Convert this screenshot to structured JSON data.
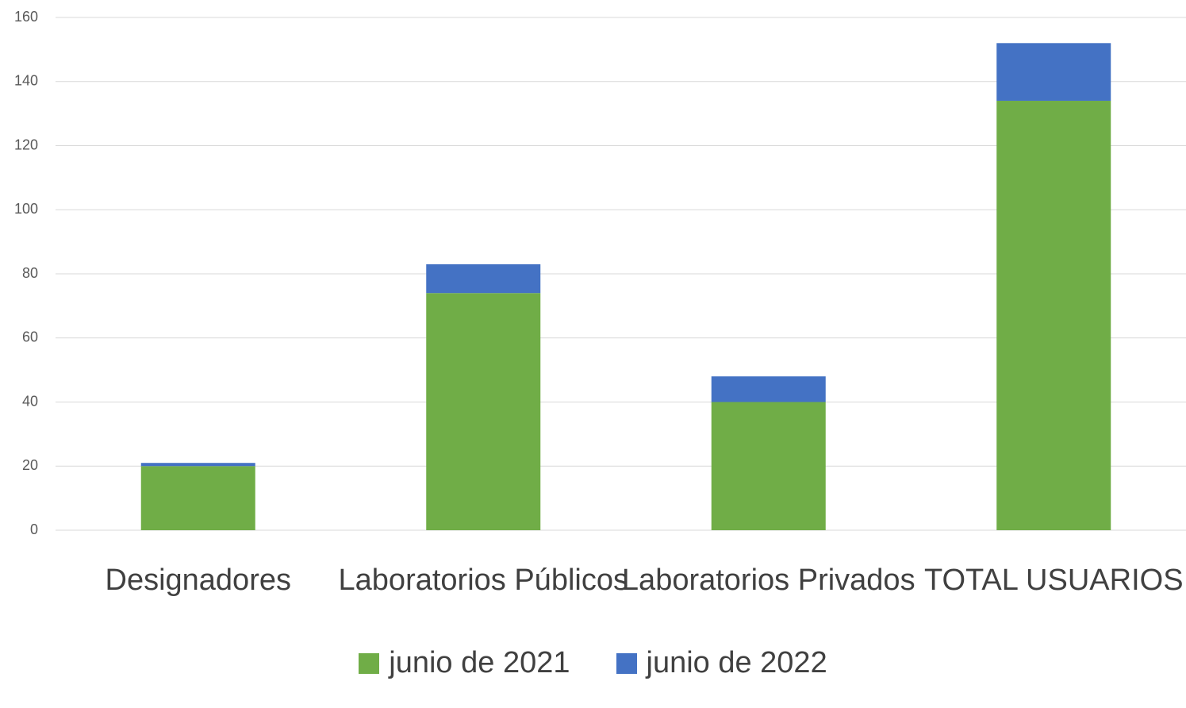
{
  "chart_data": {
    "type": "stacked_bar",
    "categories": [
      "Designadores",
      "Laboratorios Públicos",
      "Laboratorios Privados",
      "TOTAL USUARIOS"
    ],
    "series": [
      {
        "name": "junio de 2021",
        "color": "#70ad47",
        "values": [
          20,
          74,
          40,
          134
        ]
      },
      {
        "name": "junio de 2022",
        "color": "#4472c4",
        "values": [
          1,
          9,
          8,
          18
        ]
      }
    ],
    "ylim": [
      0,
      160
    ],
    "yticks": [
      0,
      20,
      40,
      60,
      80,
      100,
      120,
      140,
      160
    ],
    "grid": true,
    "legend": "bottom"
  }
}
